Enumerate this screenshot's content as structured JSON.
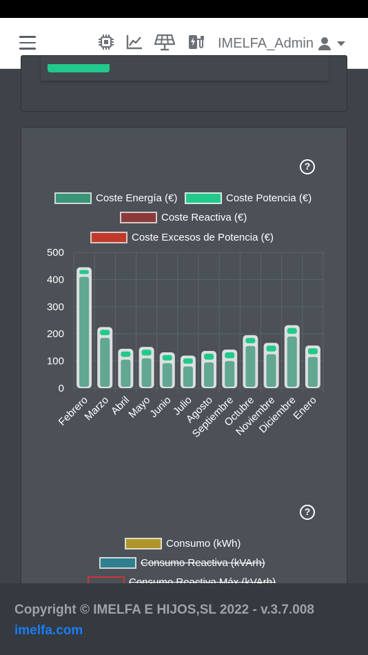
{
  "navbar": {
    "user_label": "IMELFA_Admin",
    "icons": [
      "microchip-icon",
      "line-chart-icon",
      "solar-panel-icon",
      "ev-charger-icon",
      "user-icon"
    ]
  },
  "colors": {
    "accent": "#22c98a",
    "energia": "#3a9478",
    "potencia": "#22c98a",
    "reactiva": "#8b3a3a",
    "excesos": "#c0392b",
    "consumo": "#b0962a",
    "consumo_reactiva": "#2f7f8f",
    "consumo_reactiva_max": "#d0333a"
  },
  "cost_legend": [
    {
      "label": "Coste Energía (€)",
      "color": "#3a9478",
      "hidden": false
    },
    {
      "label": "Coste Potencia (€)",
      "color": "#22c98a",
      "hidden": false
    },
    {
      "label": "Coste Reactiva (€)",
      "color": "#8b3a3a",
      "hidden": false
    },
    {
      "label": "Coste Excesos de Potencia (€)",
      "color": "#c0392b",
      "hidden": false
    }
  ],
  "consumption_legend": [
    {
      "label": "Consumo (kWh)",
      "color": "#b0962a",
      "hidden": false
    },
    {
      "label": "Consumo Reactiva (kVArh)",
      "color": "#2f7f8f",
      "hidden": true
    },
    {
      "label": "Consumo Reactiva Máx (kVArh)",
      "color": "#d0333a",
      "hidden": true
    }
  ],
  "chart_data": {
    "type": "bar",
    "stacked": true,
    "categories": [
      "Febrero",
      "Marzo",
      "Abril",
      "Mayo",
      "Junio",
      "Julio",
      "Agosto",
      "Septiembre",
      "Octubre",
      "Noviembre",
      "Diciembre",
      "Enero"
    ],
    "series": [
      {
        "name": "Coste Energía (€)",
        "values": [
          410,
          185,
          105,
          110,
          92,
          80,
          95,
          100,
          155,
          125,
          190,
          115
        ]
      },
      {
        "name": "Coste Potencia (€)",
        "values": [
          35,
          40,
          40,
          42,
          40,
          40,
          42,
          42,
          40,
          42,
          42,
          42
        ]
      },
      {
        "name": "Coste Reactiva (€)",
        "values": [
          0,
          0,
          0,
          0,
          0,
          0,
          0,
          0,
          0,
          0,
          0,
          0
        ]
      },
      {
        "name": "Coste Excesos de Potencia (€)",
        "values": [
          0,
          0,
          0,
          0,
          0,
          0,
          0,
          0,
          0,
          0,
          0,
          0
        ]
      }
    ],
    "yticks": [
      0,
      100,
      200,
      300,
      400,
      500
    ],
    "ylim": [
      0,
      500
    ],
    "grid": true,
    "legend": "top-center"
  },
  "footer": {
    "copyright": "Copyright © IMELFA E HIJOS,SL 2022 - v.3.7.008",
    "link": "imelfa.com"
  }
}
